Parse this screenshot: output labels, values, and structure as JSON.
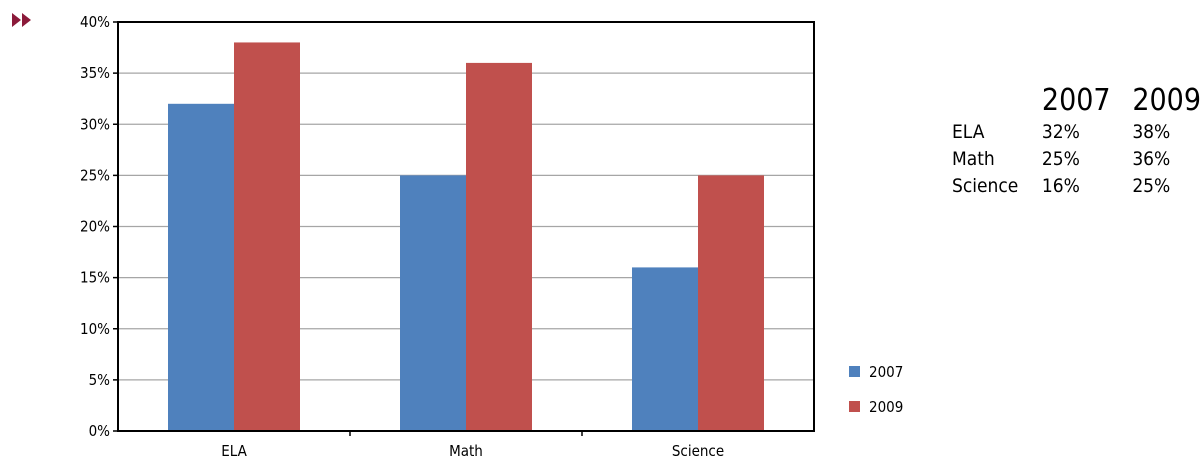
{
  "nav_icon": "double-arrow-right-icon",
  "colors": {
    "series_2007": "#4F81BD",
    "series_2009": "#C0504D",
    "nav_icon": "#8B1A3A",
    "gridline": "#A6A6A6",
    "axis": "#000000"
  },
  "chart_data": {
    "type": "bar",
    "categories": [
      "ELA",
      "Math",
      "Science"
    ],
    "series": [
      {
        "name": "2007",
        "values": [
          32,
          25,
          16
        ]
      },
      {
        "name": "2009",
        "values": [
          38,
          36,
          25
        ]
      }
    ],
    "title": "",
    "xlabel": "",
    "ylabel": "",
    "ylim": [
      0,
      40
    ],
    "yticks": [
      "0%",
      "5%",
      "10%",
      "15%",
      "20%",
      "25%",
      "30%",
      "35%",
      "40%"
    ],
    "grid": true,
    "legend_position": "right"
  },
  "table": {
    "headers": [
      "",
      "2007",
      "2009"
    ],
    "rows": [
      [
        "ELA",
        "32%",
        "38%"
      ],
      [
        "Math",
        "25%",
        "36%"
      ],
      [
        "Science",
        "16%",
        "25%"
      ]
    ]
  }
}
